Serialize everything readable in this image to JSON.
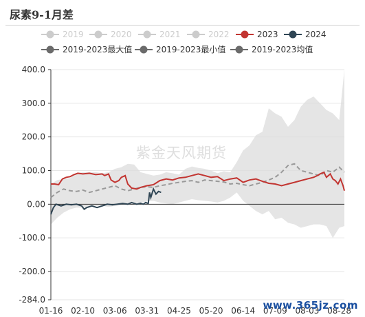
{
  "title": "尿素9-1月差",
  "watermark": "紫金天风期货",
  "footer": "www.365jz.com",
  "chart_data": {
    "type": "line",
    "title": "尿素9-1月差",
    "x_ticks": [
      "01-16",
      "02-10",
      "03-06",
      "03-31",
      "04-25",
      "05-20",
      "06-14",
      "07-09",
      "08-03",
      "08-28"
    ],
    "ylim": [
      -284,
      400
    ],
    "y_ticks": [
      400,
      300,
      200,
      100,
      0,
      -100,
      -200,
      -284
    ],
    "y_tick_labels": [
      "400.0",
      "300.0",
      "200.0",
      "100.0",
      "0.00",
      "-100.0",
      "-200.0",
      "-284.0"
    ],
    "grid": true,
    "legend_position": "top",
    "legend": [
      {
        "name": "2019",
        "color": "#cccccc",
        "inactive": true
      },
      {
        "name": "2020",
        "color": "#cccccc",
        "inactive": true
      },
      {
        "name": "2021",
        "color": "#cccccc",
        "inactive": true
      },
      {
        "name": "2022",
        "color": "#cccccc",
        "inactive": true
      },
      {
        "name": "2023",
        "color": "#c23531",
        "inactive": false
      },
      {
        "name": "2024",
        "color": "#2f4554",
        "inactive": false
      },
      {
        "name": "2019-2023最大值",
        "color": "#6b6b6b",
        "inactive": false
      },
      {
        "name": "2019-2023最小值",
        "color": "#6b6b6b",
        "inactive": false
      },
      {
        "name": "2019-2023均值",
        "color": "#6b6b6b",
        "inactive": false
      }
    ],
    "band_x": [
      0,
      5,
      10,
      15,
      20,
      25,
      30,
      35,
      40,
      45,
      50,
      55,
      60,
      65,
      70,
      75,
      80,
      85,
      90,
      95,
      100,
      105,
      110,
      115,
      120,
      125,
      130,
      135,
      140,
      145,
      150,
      155,
      160,
      165,
      170,
      175,
      180,
      185,
      190,
      195,
      200,
      205,
      210,
      215,
      220,
      225,
      229
    ],
    "band_max": [
      60,
      72,
      75,
      78,
      92,
      95,
      95,
      95,
      92,
      95,
      105,
      110,
      120,
      118,
      95,
      90,
      85,
      88,
      95,
      92,
      88,
      105,
      112,
      108,
      105,
      100,
      92,
      98,
      95,
      125,
      160,
      175,
      205,
      215,
      285,
      270,
      260,
      230,
      250,
      290,
      310,
      320,
      300,
      280,
      270,
      250,
      400
    ],
    "band_min": [
      -60,
      -40,
      -25,
      -15,
      -10,
      -10,
      -8,
      -5,
      -5,
      -8,
      -5,
      -3,
      0,
      2,
      5,
      8,
      10,
      5,
      2,
      0,
      5,
      10,
      15,
      12,
      10,
      8,
      5,
      10,
      20,
      35,
      10,
      -5,
      -20,
      -30,
      -20,
      -45,
      -40,
      -55,
      -60,
      -70,
      -65,
      -60,
      -60,
      -65,
      -100,
      -70,
      -65
    ],
    "mean_series": [
      {
        "x": 0,
        "y": 20
      },
      {
        "x": 5,
        "y": 35
      },
      {
        "x": 10,
        "y": 45
      },
      {
        "x": 15,
        "y": 40
      },
      {
        "x": 20,
        "y": 38
      },
      {
        "x": 25,
        "y": 42
      },
      {
        "x": 30,
        "y": 35
      },
      {
        "x": 35,
        "y": 40
      },
      {
        "x": 40,
        "y": 45
      },
      {
        "x": 45,
        "y": 50
      },
      {
        "x": 50,
        "y": 55
      },
      {
        "x": 55,
        "y": 45
      },
      {
        "x": 60,
        "y": 40
      },
      {
        "x": 65,
        "y": 45
      },
      {
        "x": 70,
        "y": 50
      },
      {
        "x": 75,
        "y": 52
      },
      {
        "x": 80,
        "y": 50
      },
      {
        "x": 85,
        "y": 55
      },
      {
        "x": 90,
        "y": 58
      },
      {
        "x": 95,
        "y": 62
      },
      {
        "x": 100,
        "y": 65
      },
      {
        "x": 105,
        "y": 68
      },
      {
        "x": 110,
        "y": 70
      },
      {
        "x": 115,
        "y": 65
      },
      {
        "x": 120,
        "y": 72
      },
      {
        "x": 125,
        "y": 70
      },
      {
        "x": 130,
        "y": 68
      },
      {
        "x": 135,
        "y": 66
      },
      {
        "x": 140,
        "y": 60
      },
      {
        "x": 145,
        "y": 62
      },
      {
        "x": 150,
        "y": 58
      },
      {
        "x": 155,
        "y": 55
      },
      {
        "x": 160,
        "y": 60
      },
      {
        "x": 165,
        "y": 65
      },
      {
        "x": 170,
        "y": 72
      },
      {
        "x": 175,
        "y": 80
      },
      {
        "x": 180,
        "y": 95
      },
      {
        "x": 185,
        "y": 115
      },
      {
        "x": 190,
        "y": 120
      },
      {
        "x": 195,
        "y": 100
      },
      {
        "x": 200,
        "y": 95
      },
      {
        "x": 205,
        "y": 90
      },
      {
        "x": 210,
        "y": 85
      },
      {
        "x": 215,
        "y": 100
      },
      {
        "x": 220,
        "y": 95
      },
      {
        "x": 225,
        "y": 110
      },
      {
        "x": 229,
        "y": 95
      }
    ],
    "series_2023": [
      {
        "x": 0,
        "y": 60
      },
      {
        "x": 3,
        "y": 60
      },
      {
        "x": 6,
        "y": 58
      },
      {
        "x": 9,
        "y": 75
      },
      {
        "x": 12,
        "y": 80
      },
      {
        "x": 15,
        "y": 82
      },
      {
        "x": 18,
        "y": 88
      },
      {
        "x": 21,
        "y": 92
      },
      {
        "x": 25,
        "y": 90
      },
      {
        "x": 30,
        "y": 92
      },
      {
        "x": 35,
        "y": 88
      },
      {
        "x": 40,
        "y": 90
      },
      {
        "x": 42,
        "y": 85
      },
      {
        "x": 45,
        "y": 90
      },
      {
        "x": 47,
        "y": 72
      },
      {
        "x": 50,
        "y": 65
      },
      {
        "x": 53,
        "y": 70
      },
      {
        "x": 55,
        "y": 80
      },
      {
        "x": 58,
        "y": 85
      },
      {
        "x": 60,
        "y": 60
      },
      {
        "x": 63,
        "y": 48
      },
      {
        "x": 67,
        "y": 45
      },
      {
        "x": 70,
        "y": 50
      },
      {
        "x": 75,
        "y": 55
      },
      {
        "x": 80,
        "y": 58
      },
      {
        "x": 85,
        "y": 70
      },
      {
        "x": 90,
        "y": 75
      },
      {
        "x": 95,
        "y": 72
      },
      {
        "x": 100,
        "y": 78
      },
      {
        "x": 105,
        "y": 80
      },
      {
        "x": 110,
        "y": 85
      },
      {
        "x": 115,
        "y": 90
      },
      {
        "x": 120,
        "y": 85
      },
      {
        "x": 125,
        "y": 80
      },
      {
        "x": 130,
        "y": 82
      },
      {
        "x": 135,
        "y": 70
      },
      {
        "x": 140,
        "y": 75
      },
      {
        "x": 145,
        "y": 78
      },
      {
        "x": 150,
        "y": 65
      },
      {
        "x": 155,
        "y": 72
      },
      {
        "x": 160,
        "y": 75
      },
      {
        "x": 165,
        "y": 68
      },
      {
        "x": 170,
        "y": 62
      },
      {
        "x": 175,
        "y": 60
      },
      {
        "x": 180,
        "y": 55
      },
      {
        "x": 185,
        "y": 60
      },
      {
        "x": 190,
        "y": 65
      },
      {
        "x": 195,
        "y": 70
      },
      {
        "x": 200,
        "y": 75
      },
      {
        "x": 205,
        "y": 80
      },
      {
        "x": 208,
        "y": 85
      },
      {
        "x": 210,
        "y": 90
      },
      {
        "x": 213,
        "y": 95
      },
      {
        "x": 215,
        "y": 80
      },
      {
        "x": 218,
        "y": 90
      },
      {
        "x": 220,
        "y": 75
      },
      {
        "x": 222,
        "y": 70
      },
      {
        "x": 224,
        "y": 60
      },
      {
        "x": 226,
        "y": 75
      },
      {
        "x": 228,
        "y": 55
      },
      {
        "x": 229,
        "y": 40
      }
    ],
    "series_2024": [
      {
        "x": 0,
        "y": -30
      },
      {
        "x": 2,
        "y": -10
      },
      {
        "x": 4,
        "y": 0
      },
      {
        "x": 8,
        "y": -5
      },
      {
        "x": 12,
        "y": 0
      },
      {
        "x": 16,
        "y": -2
      },
      {
        "x": 20,
        "y": 0
      },
      {
        "x": 24,
        "y": -5
      },
      {
        "x": 26,
        "y": -15
      },
      {
        "x": 28,
        "y": -10
      },
      {
        "x": 32,
        "y": -5
      },
      {
        "x": 36,
        "y": -10
      },
      {
        "x": 40,
        "y": -5
      },
      {
        "x": 44,
        "y": 0
      },
      {
        "x": 48,
        "y": -2
      },
      {
        "x": 52,
        "y": 0
      },
      {
        "x": 56,
        "y": 2
      },
      {
        "x": 60,
        "y": 0
      },
      {
        "x": 63,
        "y": 5
      },
      {
        "x": 67,
        "y": 0
      },
      {
        "x": 70,
        "y": 3
      },
      {
        "x": 72,
        "y": 0
      },
      {
        "x": 74,
        "y": 5
      },
      {
        "x": 76,
        "y": 2
      },
      {
        "x": 77,
        "y": 35
      },
      {
        "x": 78,
        "y": 20
      },
      {
        "x": 80,
        "y": 45
      },
      {
        "x": 82,
        "y": 30
      },
      {
        "x": 84,
        "y": 38
      },
      {
        "x": 86,
        "y": 35
      }
    ]
  }
}
